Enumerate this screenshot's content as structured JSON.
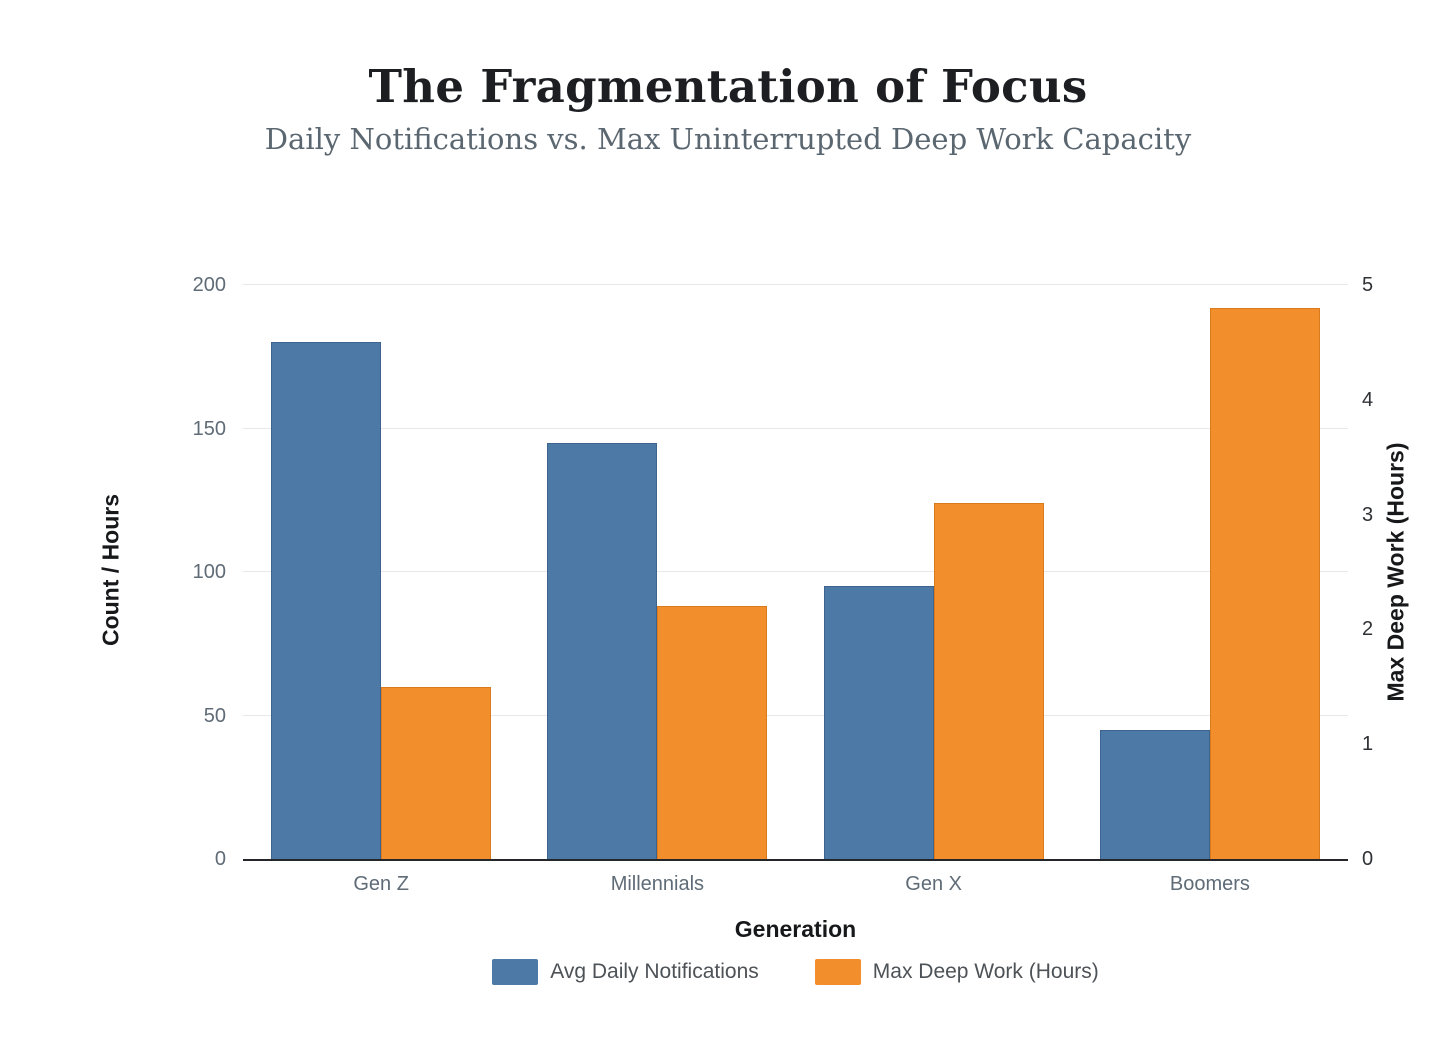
{
  "header": {
    "title": "The Fragmentation of Focus",
    "subtitle": "Daily Notifications vs. Max Uninterrupted Deep Work Capacity"
  },
  "chart_data": {
    "type": "bar",
    "title": "The Fragmentation of Focus",
    "subtitle": "Daily Notifications vs. Max Uninterrupted Deep Work Capacity",
    "categories": [
      "Gen Z",
      "Millennials",
      "Gen X",
      "Boomers"
    ],
    "series": [
      {
        "name": "Avg Daily Notifications",
        "axis": "left",
        "color": "#4d79a7",
        "border_color": "#3d648f",
        "values": [
          180,
          145,
          95,
          45
        ]
      },
      {
        "name": "Max Deep Work (Hours)",
        "axis": "right",
        "color": "#f28e2b",
        "border_color": "#d97b1c",
        "values": [
          1.5,
          2.2,
          3.1,
          4.8
        ]
      }
    ],
    "xlabel": "Generation",
    "axes": {
      "left": {
        "label": "Count / Hours",
        "min": 0,
        "max": 200,
        "ticks": [
          0,
          50,
          100,
          150,
          200
        ]
      },
      "right": {
        "label": "Max Deep Work (Hours)",
        "min": 0,
        "max": 5,
        "ticks": [
          0,
          1,
          2,
          3,
          4,
          5
        ]
      }
    },
    "grid": "horizontal lines at left-axis ticks",
    "legend_position": "bottom",
    "background": "#ffffff"
  },
  "style_colors": {
    "grid_line": "#e8e8e8",
    "axis_line": "#24262a",
    "tick_label": "#5f6b76",
    "right_tick_label": "#2e3135",
    "axis_title": "#17181a",
    "title": "#1c1e22",
    "subtitle": "#5b6770",
    "legend_label": "#4d5257"
  }
}
